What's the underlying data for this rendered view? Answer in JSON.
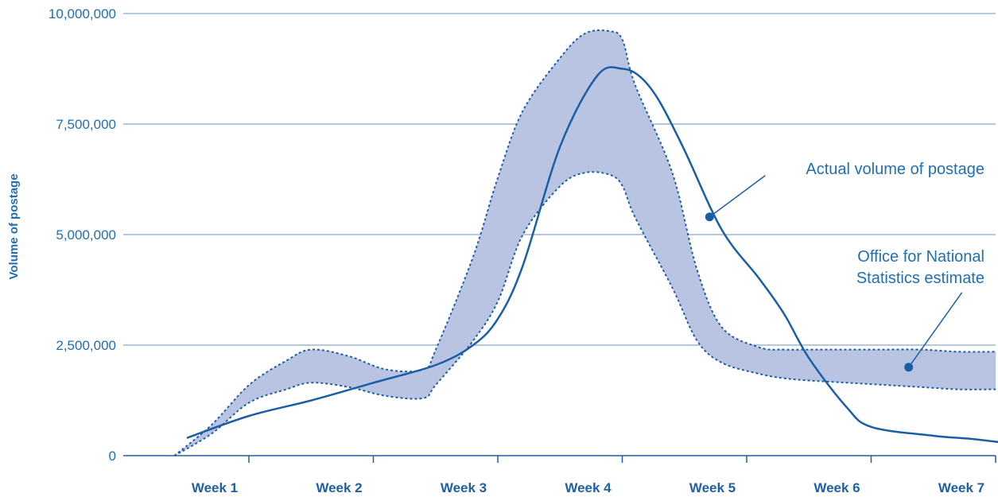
{
  "chart_data": {
    "type": "line",
    "title": "",
    "ylabel": "Volume of postage",
    "xlabel": "",
    "ylim": [
      0,
      10000000
    ],
    "xlim": [
      0,
      7
    ],
    "grid": true,
    "yticks": [
      {
        "value": 0,
        "label": "0"
      },
      {
        "value": 2500000,
        "label": "2,500,000"
      },
      {
        "value": 5000000,
        "label": "5,000,000"
      },
      {
        "value": 7500000,
        "label": "7,500,000"
      },
      {
        "value": 10000000,
        "label": "10,000,000"
      }
    ],
    "categories": [
      "Week 1",
      "Week 2",
      "Week 3",
      "Week 4",
      "Week 5",
      "Week 6",
      "Week 7"
    ],
    "series": [
      {
        "name": "Actual volume of postage",
        "style": "solid",
        "color": "#1a5fa6",
        "x": [
          0.0,
          0.5,
          1.0,
          1.5,
          2.0,
          2.3,
          2.5,
          2.7,
          3.0,
          3.3,
          3.5,
          3.65,
          3.8,
          4.0,
          4.3,
          4.6,
          4.8,
          5.0,
          5.3,
          5.5,
          6.0,
          6.3,
          6.6
        ],
        "y": [
          400000,
          900000,
          1250000,
          1650000,
          2050000,
          2500000,
          3100000,
          4300000,
          7000000,
          8600000,
          8750000,
          8550000,
          8000000,
          6900000,
          5100000,
          4000000,
          3200000,
          2200000,
          1100000,
          650000,
          450000,
          380000,
          280000
        ]
      }
    ],
    "band": {
      "name": "Office for National Statistics estimate",
      "color": "#b8c4e2",
      "x": [
        -0.1,
        0.2,
        0.5,
        0.8,
        1.0,
        1.3,
        1.6,
        1.9,
        2.0,
        2.3,
        2.5,
        2.7,
        3.0,
        3.2,
        3.4,
        3.5,
        3.6,
        3.9,
        4.1,
        4.3,
        4.6,
        4.8,
        5.0,
        5.3,
        5.6,
        5.9,
        6.2,
        6.5
      ],
      "upper": [
        0,
        700000,
        1600000,
        2150000,
        2400000,
        2250000,
        1950000,
        1950000,
        2400000,
        4500000,
        6300000,
        7800000,
        9000000,
        9550000,
        9600000,
        9400000,
        8400000,
        6400000,
        4200000,
        2900000,
        2450000,
        2400000,
        2400000,
        2400000,
        2400000,
        2400000,
        2350000,
        2350000
      ],
      "lower": [
        0,
        500000,
        1200000,
        1500000,
        1650000,
        1550000,
        1350000,
        1300000,
        1600000,
        2600000,
        3500000,
        5000000,
        6100000,
        6400000,
        6350000,
        6100000,
        5400000,
        3800000,
        2600000,
        2100000,
        1850000,
        1750000,
        1700000,
        1650000,
        1600000,
        1550000,
        1500000,
        1500000
      ]
    },
    "annotations": [
      {
        "text": "Actual volume of postage",
        "series": "actual",
        "at_x": 4.2,
        "at_y": 5400000
      },
      {
        "lines": [
          "Office for National",
          "Statistics estimate"
        ],
        "series": "band",
        "at_x": 5.8,
        "at_y": 2000000
      }
    ]
  }
}
